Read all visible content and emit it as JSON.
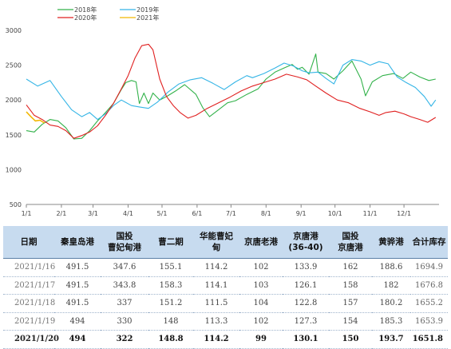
{
  "chart_data": {
    "type": "line",
    "title": "",
    "xlabel": "",
    "ylabel": "",
    "ylim": [
      500,
      3000
    ],
    "yticks": [
      500,
      1000,
      1500,
      2000,
      2500,
      3000
    ],
    "xlim": [
      0,
      365
    ],
    "xticks": [
      {
        "label": "1/1",
        "day": 0
      },
      {
        "label": "2/1",
        "day": 31
      },
      {
        "label": "3/1",
        "day": 59
      },
      {
        "label": "4/1",
        "day": 90
      },
      {
        "label": "5/1",
        "day": 120
      },
      {
        "label": "6/1",
        "day": 151
      },
      {
        "label": "7/1",
        "day": 181
      },
      {
        "label": "8/1",
        "day": 212
      },
      {
        "label": "9/1",
        "day": 243
      },
      {
        "label": "10/1",
        "day": 273
      },
      {
        "label": "11/1",
        "day": 304
      },
      {
        "label": "12/1",
        "day": 334
      }
    ],
    "grid": false,
    "legend_position": "top-left",
    "series": [
      {
        "name": "2018年",
        "color": "#33b24b",
        "points": [
          [
            0,
            1560
          ],
          [
            7,
            1540
          ],
          [
            14,
            1650
          ],
          [
            21,
            1720
          ],
          [
            28,
            1700
          ],
          [
            35,
            1600
          ],
          [
            42,
            1440
          ],
          [
            49,
            1450
          ],
          [
            56,
            1560
          ],
          [
            63,
            1700
          ],
          [
            70,
            1820
          ],
          [
            77,
            1950
          ],
          [
            84,
            2150
          ],
          [
            88,
            2250
          ],
          [
            93,
            2280
          ],
          [
            97,
            2260
          ],
          [
            100,
            1950
          ],
          [
            104,
            2100
          ],
          [
            108,
            1950
          ],
          [
            112,
            2100
          ],
          [
            118,
            2000
          ],
          [
            125,
            2060
          ],
          [
            132,
            2130
          ],
          [
            140,
            2220
          ],
          [
            150,
            2080
          ],
          [
            156,
            1890
          ],
          [
            162,
            1760
          ],
          [
            170,
            1860
          ],
          [
            178,
            1960
          ],
          [
            185,
            1990
          ],
          [
            195,
            2080
          ],
          [
            205,
            2160
          ],
          [
            212,
            2300
          ],
          [
            220,
            2400
          ],
          [
            228,
            2460
          ],
          [
            235,
            2510
          ],
          [
            240,
            2440
          ],
          [
            244,
            2470
          ],
          [
            250,
            2370
          ],
          [
            256,
            2660
          ],
          [
            258,
            2400
          ],
          [
            265,
            2380
          ],
          [
            272,
            2300
          ],
          [
            280,
            2420
          ],
          [
            288,
            2560
          ],
          [
            296,
            2300
          ],
          [
            300,
            2060
          ],
          [
            306,
            2260
          ],
          [
            315,
            2350
          ],
          [
            325,
            2380
          ],
          [
            333,
            2310
          ],
          [
            340,
            2400
          ],
          [
            348,
            2330
          ],
          [
            356,
            2280
          ],
          [
            362,
            2300
          ]
        ]
      },
      {
        "name": "2019年",
        "color": "#35b5e6",
        "points": [
          [
            0,
            2300
          ],
          [
            10,
            2200
          ],
          [
            21,
            2280
          ],
          [
            31,
            2050
          ],
          [
            40,
            1860
          ],
          [
            49,
            1760
          ],
          [
            56,
            1820
          ],
          [
            63,
            1720
          ],
          [
            70,
            1800
          ],
          [
            77,
            1920
          ],
          [
            84,
            2000
          ],
          [
            93,
            1920
          ],
          [
            100,
            1900
          ],
          [
            108,
            1880
          ],
          [
            116,
            1970
          ],
          [
            125,
            2110
          ],
          [
            135,
            2230
          ],
          [
            145,
            2290
          ],
          [
            155,
            2320
          ],
          [
            165,
            2240
          ],
          [
            175,
            2150
          ],
          [
            185,
            2260
          ],
          [
            195,
            2350
          ],
          [
            200,
            2320
          ],
          [
            210,
            2380
          ],
          [
            220,
            2460
          ],
          [
            228,
            2530
          ],
          [
            236,
            2490
          ],
          [
            244,
            2420
          ],
          [
            250,
            2390
          ],
          [
            258,
            2400
          ],
          [
            265,
            2310
          ],
          [
            272,
            2230
          ],
          [
            280,
            2500
          ],
          [
            288,
            2580
          ],
          [
            296,
            2560
          ],
          [
            304,
            2500
          ],
          [
            312,
            2550
          ],
          [
            320,
            2520
          ],
          [
            328,
            2330
          ],
          [
            336,
            2250
          ],
          [
            344,
            2180
          ],
          [
            352,
            2050
          ],
          [
            358,
            1910
          ],
          [
            362,
            2000
          ]
        ]
      },
      {
        "name": "2020年",
        "color": "#e02020",
        "points": [
          [
            0,
            1930
          ],
          [
            7,
            1780
          ],
          [
            14,
            1720
          ],
          [
            21,
            1640
          ],
          [
            28,
            1620
          ],
          [
            35,
            1560
          ],
          [
            42,
            1450
          ],
          [
            49,
            1490
          ],
          [
            56,
            1540
          ],
          [
            63,
            1630
          ],
          [
            70,
            1780
          ],
          [
            77,
            1950
          ],
          [
            84,
            2160
          ],
          [
            90,
            2350
          ],
          [
            96,
            2600
          ],
          [
            102,
            2780
          ],
          [
            108,
            2800
          ],
          [
            112,
            2720
          ],
          [
            118,
            2300
          ],
          [
            124,
            2050
          ],
          [
            130,
            1920
          ],
          [
            136,
            1820
          ],
          [
            143,
            1740
          ],
          [
            150,
            1780
          ],
          [
            160,
            1880
          ],
          [
            170,
            1960
          ],
          [
            180,
            2040
          ],
          [
            190,
            2130
          ],
          [
            200,
            2200
          ],
          [
            210,
            2250
          ],
          [
            220,
            2300
          ],
          [
            230,
            2370
          ],
          [
            240,
            2330
          ],
          [
            248,
            2290
          ],
          [
            256,
            2200
          ],
          [
            265,
            2100
          ],
          [
            275,
            2000
          ],
          [
            285,
            1960
          ],
          [
            295,
            1880
          ],
          [
            304,
            1830
          ],
          [
            312,
            1780
          ],
          [
            318,
            1820
          ],
          [
            326,
            1840
          ],
          [
            334,
            1800
          ],
          [
            340,
            1760
          ],
          [
            348,
            1720
          ],
          [
            355,
            1680
          ],
          [
            362,
            1750
          ]
        ]
      },
      {
        "name": "2021年",
        "color": "#f2b600",
        "points": [
          [
            0,
            1830
          ],
          [
            4,
            1760
          ],
          [
            8,
            1700
          ],
          [
            12,
            1710
          ],
          [
            16,
            1670
          ]
        ]
      }
    ]
  },
  "table": {
    "headers": [
      [
        "日期"
      ],
      [
        "秦皇岛港"
      ],
      [
        "国投",
        "曹妃甸港"
      ],
      [
        "曹二期"
      ],
      [
        "华能曹妃",
        "甸"
      ],
      [
        "京唐老港"
      ],
      [
        "京唐港",
        "(36-40)"
      ],
      [
        "国投",
        "京唐港"
      ],
      [
        "黄骅港"
      ],
      [
        "合计库存"
      ]
    ],
    "rows": [
      {
        "cells": [
          "2021/1/16",
          "491.5",
          "347.6",
          "155.1",
          "114.2",
          "102",
          "133.9",
          "162",
          "188.6",
          "1694.9"
        ],
        "bold": false
      },
      {
        "cells": [
          "2021/1/17",
          "491.5",
          "343.8",
          "158.3",
          "114.1",
          "103",
          "126.1",
          "158",
          "182",
          "1676.8"
        ],
        "bold": false
      },
      {
        "cells": [
          "2021/1/18",
          "491.5",
          "337",
          "151.2",
          "111.5",
          "104",
          "122.8",
          "157",
          "180.2",
          "1655.2"
        ],
        "bold": false
      },
      {
        "cells": [
          "2021/1/19",
          "494",
          "330",
          "148",
          "113.3",
          "102",
          "127.3",
          "154",
          "185.3",
          "1653.9"
        ],
        "bold": false
      },
      {
        "cells": [
          "2021/1/20",
          "494",
          "322",
          "148.8",
          "114.2",
          "99",
          "130.1",
          "150",
          "193.7",
          "1651.8"
        ],
        "bold": true
      }
    ]
  }
}
